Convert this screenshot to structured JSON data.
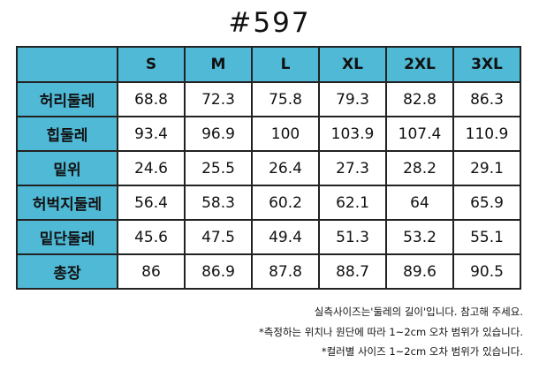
{
  "header": {
    "title": "#597"
  },
  "table": {
    "columns": [
      "S",
      "M",
      "L",
      "XL",
      "2XL",
      "3XL"
    ],
    "rows": [
      {
        "label": "허리둘레",
        "values": [
          "68.8",
          "72.3",
          "75.8",
          "79.3",
          "82.8",
          "86.3"
        ]
      },
      {
        "label": "힙둘레",
        "values": [
          "93.4",
          "96.9",
          "100",
          "103.9",
          "107.4",
          "110.9"
        ]
      },
      {
        "label": "밑위",
        "values": [
          "24.6",
          "25.5",
          "26.4",
          "27.3",
          "28.2",
          "29.1"
        ]
      },
      {
        "label": "허벅지둘레",
        "values": [
          "56.4",
          "58.3",
          "60.2",
          "62.1",
          "64",
          "65.9"
        ]
      },
      {
        "label": "밑단둘레",
        "values": [
          "45.6",
          "47.5",
          "49.4",
          "51.3",
          "53.2",
          "55.1"
        ]
      },
      {
        "label": "총장",
        "values": [
          "86",
          "86.9",
          "87.8",
          "88.7",
          "89.6",
          "90.5"
        ]
      }
    ]
  },
  "notes": [
    "실측사이즈는'둘레의 길이'입니다. 참고해 주세요.",
    "*측정하는 위치나 원단에 따라 1~2cm 오차 범위가 있습니다.",
    "*컬러별 사이즈 1~2cm 오차 범위가 있습니다."
  ]
}
